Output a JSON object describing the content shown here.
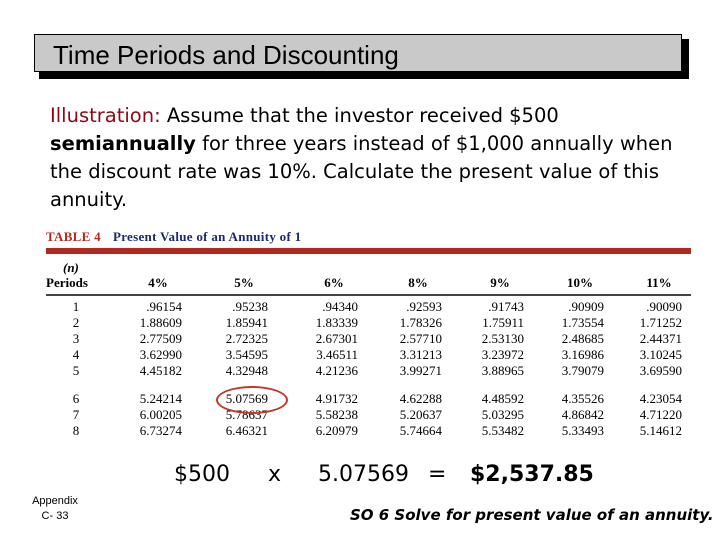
{
  "slide": {
    "title": "Time Periods and Discounting"
  },
  "illustration": {
    "lead": "Illustration:",
    "text_1": " Assume that the investor received $500 ",
    "bold": "semiannually",
    "text_2": " for three years instead of $1,000 annually when the discount rate was 10%.  Calculate the present value of this annuity."
  },
  "table": {
    "label": "TABLE 4",
    "caption": "Present Value of an Annuity of 1",
    "n_label": "(n)",
    "headers": [
      "Periods",
      "4%",
      "5%",
      "6%",
      "8%",
      "9%",
      "10%",
      "11%"
    ],
    "rows": [
      [
        "1",
        ".96154",
        ".95238",
        ".94340",
        ".92593",
        ".91743",
        ".90909",
        ".90090"
      ],
      [
        "2",
        "1.88609",
        "1.85941",
        "1.83339",
        "1.78326",
        "1.75911",
        "1.73554",
        "1.71252"
      ],
      [
        "3",
        "2.77509",
        "2.72325",
        "2.67301",
        "2.57710",
        "2.53130",
        "2.48685",
        "2.44371"
      ],
      [
        "4",
        "3.62990",
        "3.54595",
        "3.46511",
        "3.31213",
        "3.23972",
        "3.16986",
        "3.10245"
      ],
      [
        "5",
        "4.45182",
        "4.32948",
        "4.21236",
        "3.99271",
        "3.88965",
        "3.79079",
        "3.69590"
      ],
      [
        "6",
        "5.24214",
        "5.07569",
        "4.91732",
        "4.62288",
        "4.48592",
        "4.35526",
        "4.23054"
      ],
      [
        "7",
        "6.00205",
        "5.78637",
        "5.58238",
        "5.20637",
        "5.03295",
        "4.86842",
        "4.71220"
      ],
      [
        "8",
        "6.73274",
        "6.46321",
        "6.20979",
        "5.74664",
        "5.53482",
        "5.33493",
        "5.14612"
      ]
    ]
  },
  "calculation": {
    "amount": "$500",
    "operator": "x",
    "factor": "5.07569",
    "equals": "=",
    "result": "$2,537.85"
  },
  "footer": {
    "appendix": "Appendix",
    "page": "C- 33",
    "objective": "SO 6  Solve for present value of an annuity."
  },
  "colors": {
    "title_bg": "#c9c9c9",
    "lead_text": "#8b0a14",
    "table_accent": "#b22a1f",
    "table_caption": "#1a2a6b",
    "highlight": "#c0392b"
  }
}
